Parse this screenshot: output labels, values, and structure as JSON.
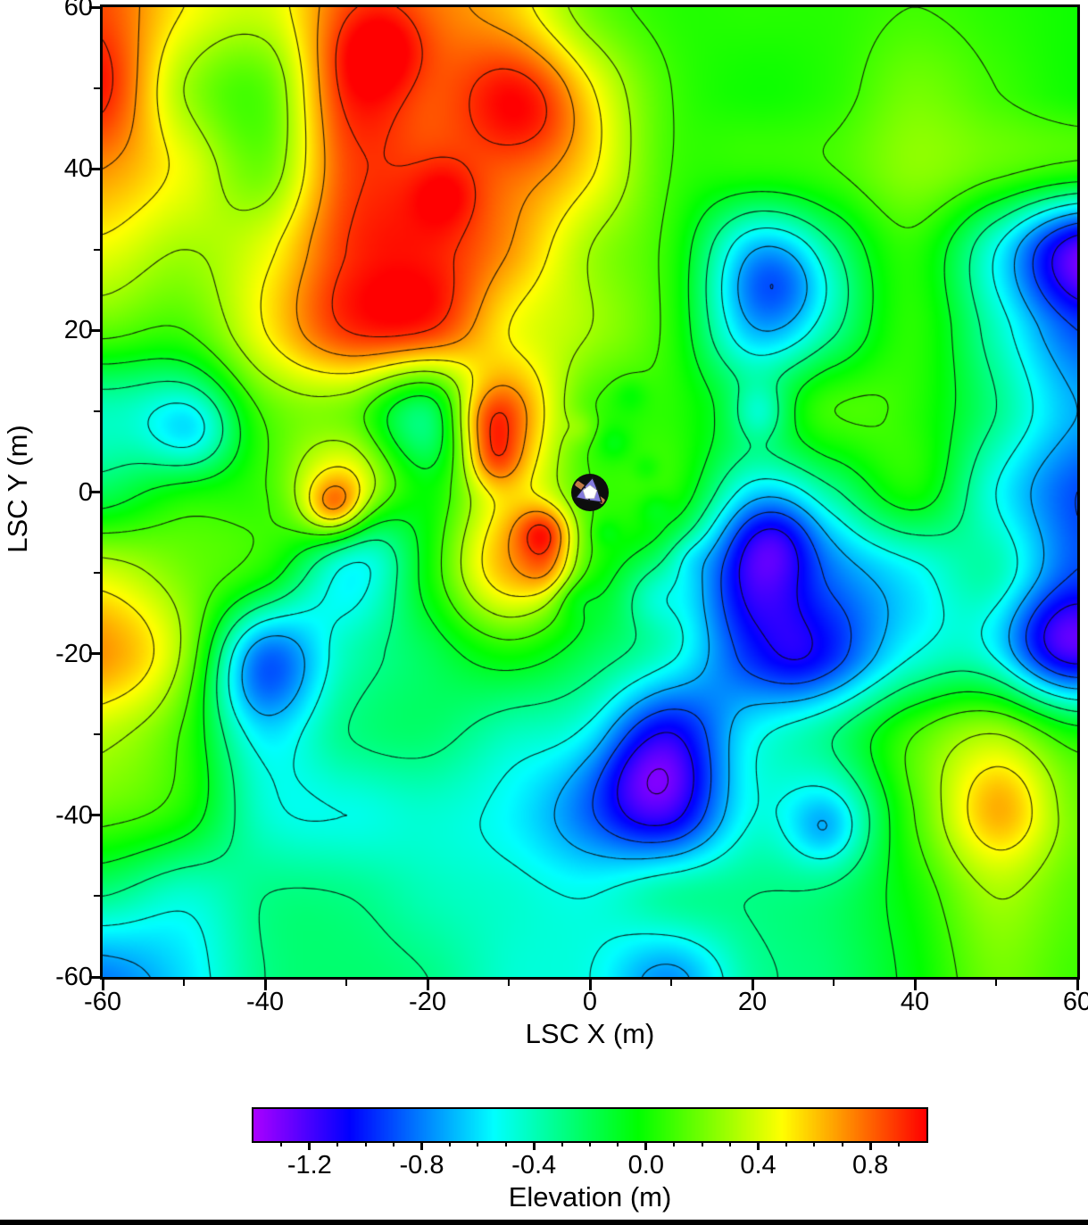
{
  "figure": {
    "x_axis_label": "LSC X (m)",
    "y_axis_label": "LSC Y (m)",
    "colorbar_label": "Elevation (m)"
  },
  "chart_data": {
    "type": "heatmap",
    "subtype": "filled-contour-map",
    "title": "",
    "xlabel": "LSC X (m)",
    "ylabel": "LSC Y (m)",
    "colorbar_label": "Elevation (m)",
    "x_range": [
      -60,
      60
    ],
    "y_range": [
      -60,
      60
    ],
    "x_ticks": [
      -60,
      -40,
      -20,
      0,
      20,
      40,
      60
    ],
    "x_tick_labels": [
      "-60",
      "-40",
      "-20",
      "0",
      "20",
      "40",
      "60"
    ],
    "y_ticks": [
      60,
      40,
      20,
      0,
      -20,
      -40,
      -60
    ],
    "y_tick_labels": [
      "60",
      "40",
      "20",
      "0",
      "-20",
      "-40",
      "-60"
    ],
    "minor_tick_step": 10,
    "z_min": -1.4,
    "z_max": 1.0,
    "colormap": "rainbow violet-to-red",
    "colormap_hue_start_deg": 280,
    "colormap_hue_end_deg": 0,
    "contour_interval": 0.2,
    "contour_level_start": -1.3,
    "colorbar_ticks": [
      -1.2,
      -0.8,
      -0.4,
      0.0,
      0.4,
      0.8
    ],
    "colorbar_tick_labels": [
      "-1.2",
      "-0.8",
      "-0.4",
      "0.0",
      "0.4",
      "0.8"
    ],
    "colorbar_minor_step": 0.1,
    "grid_spacing_m": 10,
    "grid_note": "elevation (m) sampled every 10 m, rows listed from y=+60 (top) to y=-60 (bottom), columns x=-60..+60",
    "elevation_grid": [
      [
        0.85,
        0.5,
        0.4,
        0.8,
        0.75,
        0.6,
        0.2,
        0.05,
        0.05,
        0.05,
        0.1,
        0.05,
        0.0
      ],
      [
        0.95,
        0.3,
        0.15,
        0.9,
        0.8,
        0.85,
        0.45,
        0.1,
        0.0,
        0.05,
        0.2,
        0.1,
        0.0
      ],
      [
        0.7,
        0.45,
        0.2,
        0.85,
        0.85,
        0.75,
        0.5,
        0.1,
        0.05,
        0.1,
        0.25,
        0.15,
        0.05
      ],
      [
        0.45,
        0.3,
        0.45,
        0.9,
        0.95,
        0.7,
        0.3,
        0.05,
        -0.5,
        -0.2,
        0.05,
        -0.5,
        -1.25
      ],
      [
        0.15,
        0.1,
        0.5,
        0.9,
        0.9,
        0.5,
        0.3,
        0.05,
        -0.55,
        -0.25,
        0.05,
        -0.4,
        -0.9
      ],
      [
        -0.4,
        -0.3,
        0.15,
        0.2,
        -0.25,
        0.65,
        0.1,
        0.05,
        -0.15,
        0.1,
        0.05,
        -0.3,
        -0.7
      ],
      [
        -0.2,
        0.05,
        0.1,
        0.5,
        0.0,
        0.5,
        0.1,
        0.05,
        -0.5,
        -0.3,
        0.0,
        -0.5,
        -0.9
      ],
      [
        0.4,
        0.2,
        0.0,
        -0.45,
        0.0,
        0.6,
        0.05,
        -0.3,
        -1.1,
        -0.8,
        -0.55,
        -0.35,
        -0.85
      ],
      [
        0.7,
        0.3,
        -0.7,
        -0.4,
        -0.2,
        0.0,
        -0.2,
        -0.45,
        -0.95,
        -0.9,
        -0.5,
        -0.4,
        -1.0
      ],
      [
        0.35,
        0.1,
        -0.5,
        -0.3,
        -0.25,
        -0.4,
        -0.5,
        -1.0,
        -0.55,
        -0.3,
        0.1,
        0.3,
        0.0
      ],
      [
        0.15,
        0.0,
        -0.45,
        -0.5,
        -0.45,
        -0.55,
        -0.8,
        -1.05,
        -0.5,
        -0.5,
        0.1,
        0.5,
        0.2
      ],
      [
        -0.3,
        -0.45,
        -0.3,
        -0.3,
        -0.4,
        -0.45,
        -0.5,
        -0.35,
        -0.3,
        -0.25,
        0.0,
        0.3,
        0.15
      ],
      [
        -0.8,
        -0.6,
        -0.3,
        -0.25,
        -0.3,
        -0.45,
        -0.5,
        -0.75,
        -0.35,
        -0.25,
        -0.05,
        0.2,
        0.1
      ]
    ],
    "local_features": [
      {
        "x": -25.5,
        "y": 55,
        "a": 0.25,
        "r": 4
      },
      {
        "x": -6.5,
        "y": 47,
        "a": 0.2,
        "r": 5
      },
      {
        "x": -18,
        "y": 37,
        "a": 0.18,
        "r": 3
      },
      {
        "x": -31.5,
        "y": -2,
        "a": 0.45,
        "r": 2.5
      },
      {
        "x": -5.5,
        "y": -5,
        "a": 0.5,
        "r": 2.5
      },
      {
        "x": -5,
        "y": -10,
        "a": 0.25,
        "r": 2.5
      },
      {
        "x": -13,
        "y": 9,
        "a": 0.35,
        "r": 3
      },
      {
        "x": -12,
        "y": 4,
        "a": 0.3,
        "r": 2.5
      },
      {
        "x": 23,
        "y": -5,
        "a": -0.3,
        "r": 4
      },
      {
        "x": 24,
        "y": 26,
        "a": -0.35,
        "r": 5
      },
      {
        "x": 6,
        "y": -35,
        "a": -0.25,
        "r": 5
      },
      {
        "x": 56,
        "y": -18,
        "a": -0.3,
        "r": 5
      },
      {
        "x": -49,
        "y": 7,
        "a": -0.35,
        "r": 4
      },
      {
        "x": -42,
        "y": -24,
        "a": -0.2,
        "r": 5
      },
      {
        "x": 51,
        "y": -39,
        "a": 0.15,
        "r": 4
      },
      {
        "x": 26,
        "y": -21,
        "a": -0.15,
        "r": 4
      },
      {
        "x": 29,
        "y": -42,
        "a": -0.2,
        "r": 3
      },
      {
        "x": -27,
        "y": -5,
        "a": -0.25,
        "r": 4
      },
      {
        "x": 21,
        "y": 10,
        "a": -0.3,
        "r": 2.5
      },
      {
        "x": 8,
        "y": -13,
        "a": -0.2,
        "r": 3
      },
      {
        "x": 3,
        "y": 6,
        "a": -0.12,
        "r": 1.5
      },
      {
        "x": 8,
        "y": -2,
        "a": -0.12,
        "r": 1.5
      },
      {
        "x": -2,
        "y": -13,
        "a": -0.15,
        "r": 2
      },
      {
        "x": 5,
        "y": 12,
        "a": -0.1,
        "r": 1.5
      },
      {
        "x": 12,
        "y": -8,
        "a": -0.12,
        "r": 2
      },
      {
        "x": -1,
        "y": 8,
        "a": 0.12,
        "r": 1.5
      },
      {
        "x": 7,
        "y": 3,
        "a": -0.1,
        "r": 1.2
      },
      {
        "x": 2,
        "y": -5,
        "a": -0.1,
        "r": 1.2
      }
    ],
    "marker": {
      "x": 0,
      "y": 0,
      "name": "site-marker"
    }
  },
  "marker_colors": {
    "disc": "#0d0d0d",
    "triangles": "#8379dd",
    "pentagon": "#ffffff",
    "rod": "#c17a45"
  }
}
